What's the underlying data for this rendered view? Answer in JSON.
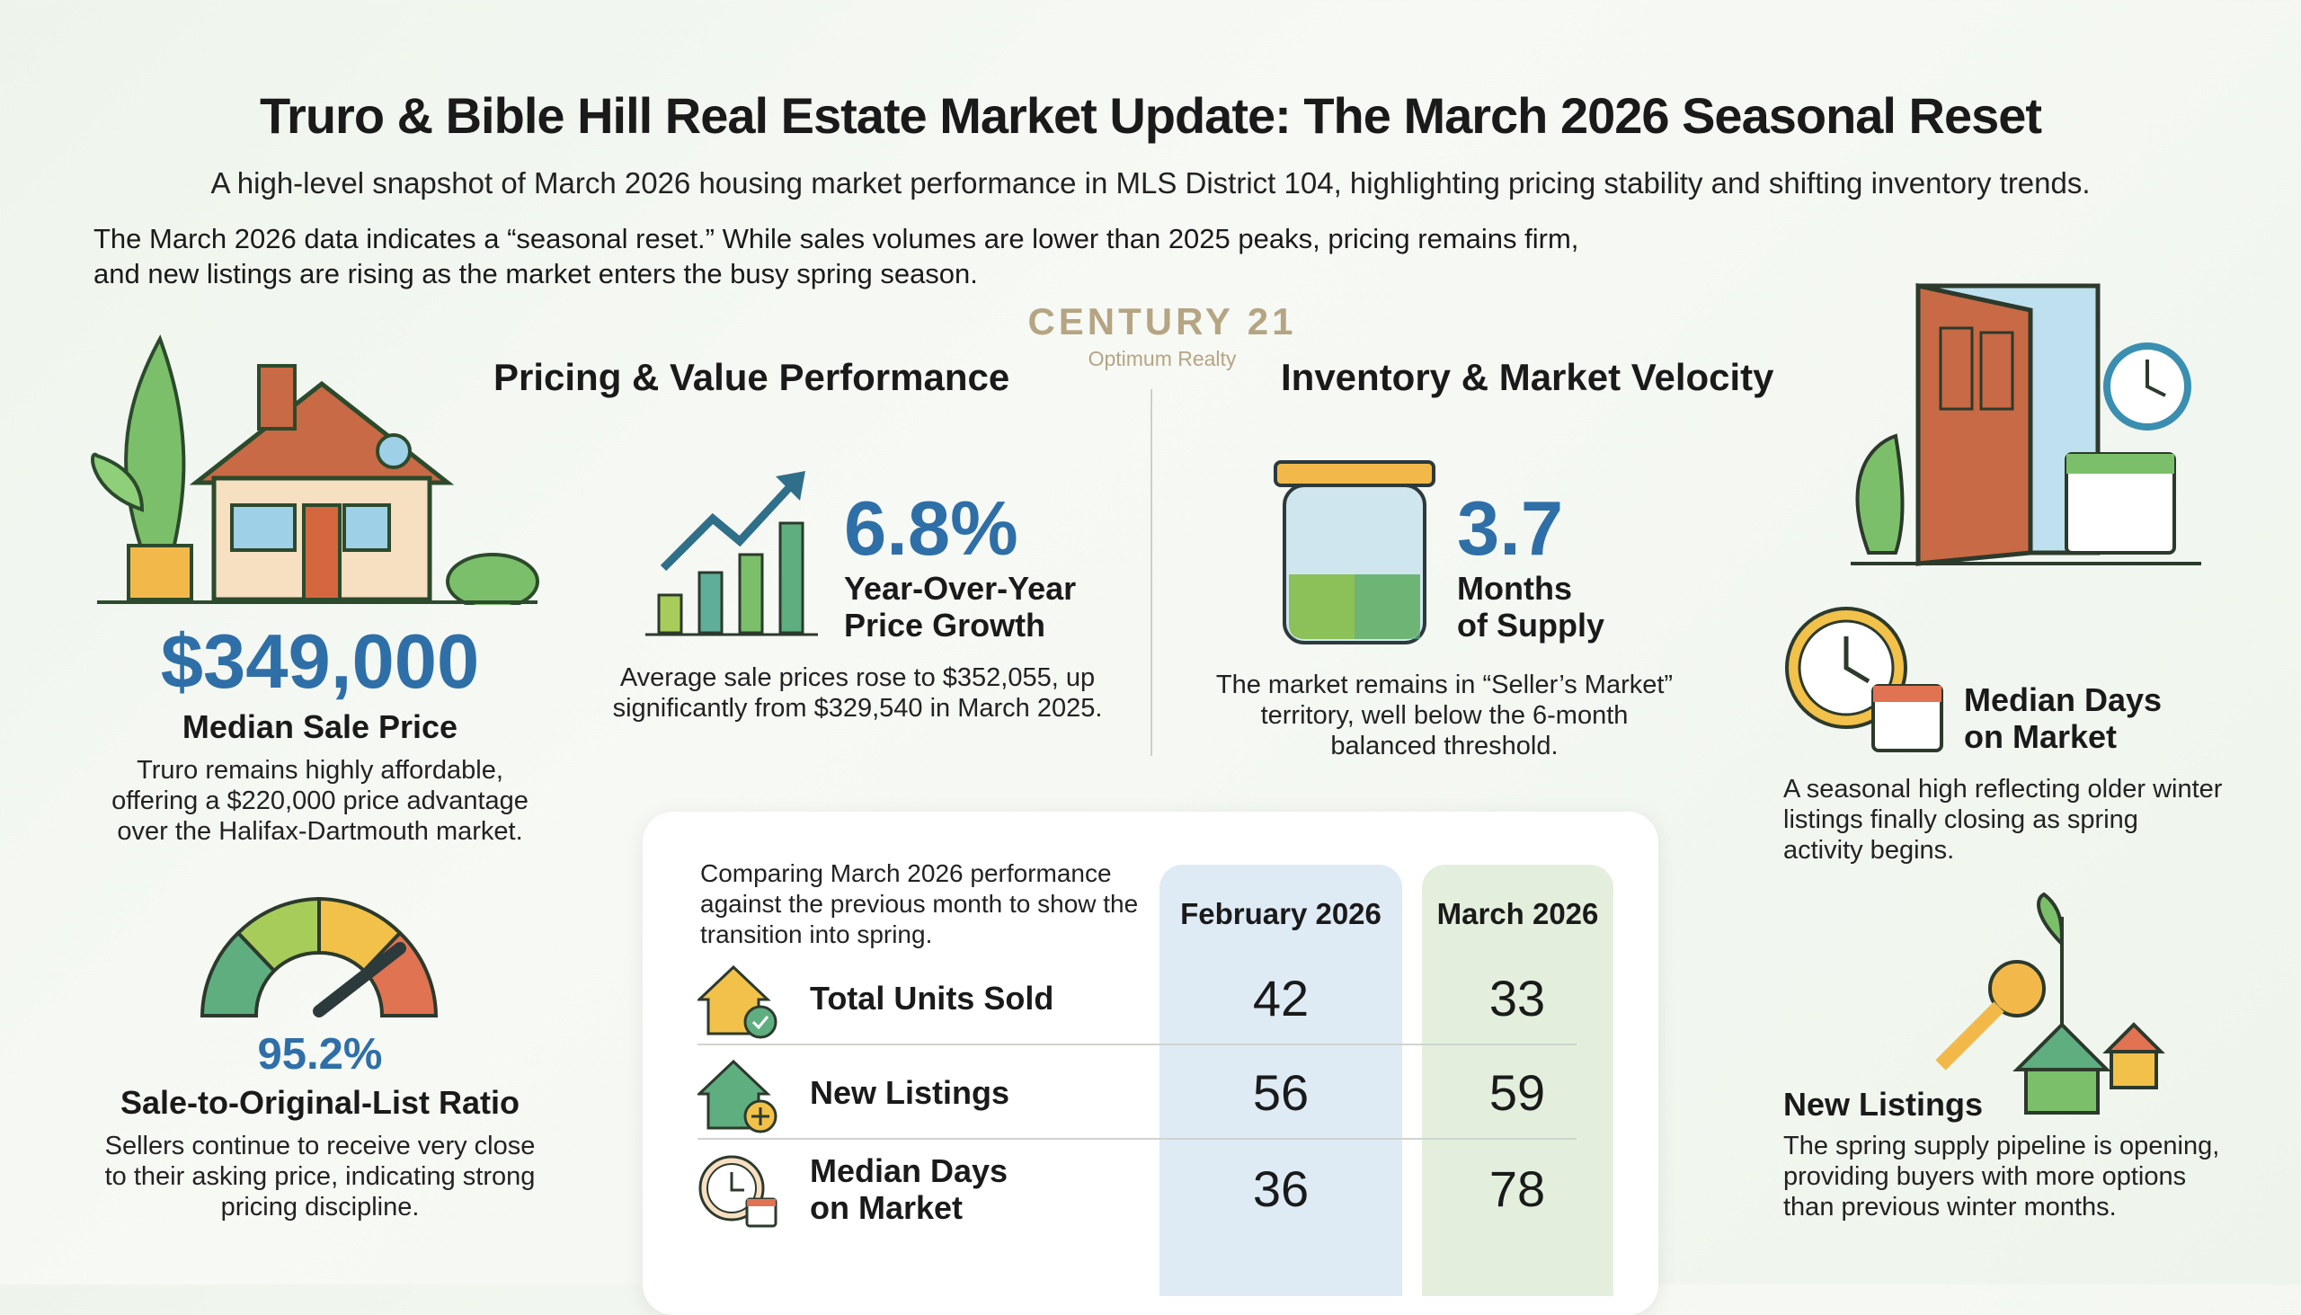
{
  "header": {
    "title": "Truro & Bible Hill Real Estate Market Update: The March 2026 Seasonal Reset",
    "subtitle": "A high-level snapshot of March 2026 housing market performance in MLS District 104, highlighting pricing stability and shifting inventory trends.",
    "intro_line1": "The March 2026 data indicates a “seasonal reset.” While sales volumes are lower than 2025 peaks, pricing remains firm,",
    "intro_line2": "and new listings are rising as the market enters the busy spring season."
  },
  "logo": {
    "brand": "CENTURY 21",
    "office": "Optimum Realty",
    "color": "#b5a583"
  },
  "sections": {
    "pricing": "Pricing & Value Performance",
    "inventory": "Inventory & Market Velocity"
  },
  "median_price": {
    "value": "$349,000",
    "label": "Median Sale Price",
    "desc": [
      "Truro remains highly affordable,",
      "offering a $220,000 price advantage",
      "over the Halifax-Dartmouth market."
    ]
  },
  "ratio": {
    "value": "95.2%",
    "percent": 95.2,
    "label": "Sale-to-Original-List Ratio",
    "desc": [
      "Sellers continue to receive very close",
      "to their asking price, indicating strong",
      "pricing discipline."
    ]
  },
  "yoy": {
    "value": "6.8%",
    "label1": "Year-Over-Year",
    "label2": "Price Growth",
    "desc": [
      "Average sale prices rose to $352,055, up",
      "significantly from $329,540 in March 2025."
    ]
  },
  "supply": {
    "value": "3.7",
    "label1": "Months",
    "label2": "of Supply",
    "desc": [
      "The market remains in “Seller’s Market”",
      "territory, well below the 6-month",
      "balanced threshold."
    ]
  },
  "dom": {
    "label1": "Median Days",
    "label2": "on Market",
    "desc": [
      "A seasonal high reflecting older winter",
      "listings finally closing as spring",
      "activity begins."
    ]
  },
  "listings": {
    "label": "New Listings",
    "desc": [
      "The spring supply pipeline is opening,",
      "providing buyers with more options",
      "than previous winter months."
    ]
  },
  "table": {
    "intro": [
      "Comparing March 2026 performance",
      "against the previous month to show the",
      "transition into spring."
    ],
    "columns": [
      "February 2026",
      "March 2026"
    ],
    "rows": [
      {
        "label": "Total Units Sold",
        "values": [
          "42",
          "33"
        ]
      },
      {
        "label": "New Listings",
        "values": [
          "56",
          "59"
        ]
      },
      {
        "label1": "Median Days",
        "label2": "on Market",
        "values": [
          "36",
          "78"
        ]
      }
    ]
  },
  "colors": {
    "accent_blue": "#2f6fa8",
    "feb_column": "#deebf5",
    "mar_column": "#e3efdc"
  }
}
